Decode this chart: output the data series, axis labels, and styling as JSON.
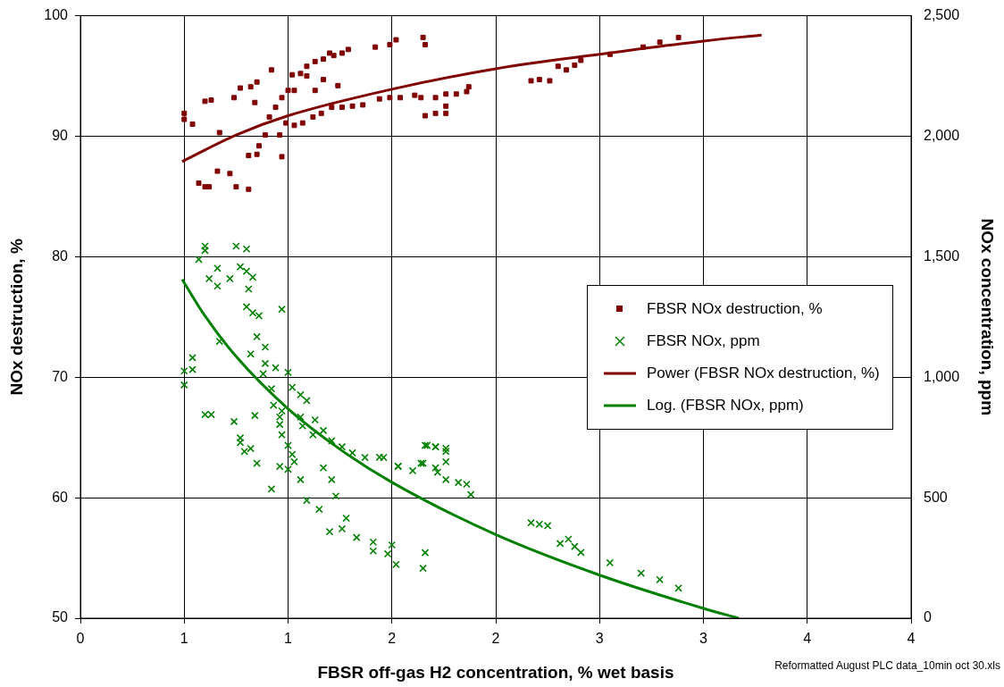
{
  "chart_data": {
    "type": "scatter",
    "xlabel": "FBSR off-gas H2 concentration, % wet basis",
    "ylabel": "NOx destruction, %",
    "y2label": "NOx concentration, ppm",
    "xlim": [
      0,
      4
    ],
    "xticks": [
      0,
      {
        "value": 0.5,
        "label": "1"
      },
      1,
      {
        "value": 1.5,
        "label": "2"
      },
      2,
      {
        "value": 2.5,
        "label": "3"
      },
      3,
      {
        "value": 3.5,
        "label": "4"
      },
      4
    ],
    "ylim": [
      50,
      100
    ],
    "yticks": [
      50,
      60,
      70,
      80,
      90,
      100
    ],
    "y2lim": [
      0,
      2500
    ],
    "y2ticks": [
      0,
      500,
      {
        "value": 1000,
        "label": "1,000"
      },
      {
        "value": 1500,
        "label": "1,500"
      },
      {
        "value": 2000,
        "label": "2,000"
      },
      {
        "value": 2500,
        "label": "2,500"
      }
    ],
    "grid": true,
    "legend": "right",
    "annotations": [
      "Reformatted August PLC data_10min oct 30.xls"
    ],
    "series": [
      {
        "name": "FBSR NOx destruction, %",
        "type": "scatter",
        "marker": "square",
        "color": "#800000",
        "x": [
          0.5,
          0.5,
          0.54,
          0.6,
          0.63,
          0.67,
          0.57,
          0.6,
          0.62,
          0.66,
          0.72,
          0.75,
          0.81,
          0.74,
          0.77,
          0.82,
          0.85,
          0.84,
          0.92,
          0.81,
          0.85,
          0.86,
          0.89,
          0.91,
          0.94,
          0.97,
          1.0,
          0.97,
          0.96,
          0.99,
          1.03,
          1.02,
          1.06,
          1.09,
          1.03,
          1.07,
          1.12,
          1.09,
          1.13,
          1.17,
          1.22,
          1.26,
          1.29,
          1.2,
          1.17,
          1.13,
          1.24,
          1.16,
          1.21,
          1.26,
          1.31,
          1.36,
          1.42,
          1.49,
          1.52,
          1.44,
          1.49,
          1.54,
          1.61,
          1.65,
          1.66,
          1.64,
          1.71,
          1.76,
          1.66,
          1.71,
          1.76,
          1.76,
          1.81,
          1.86,
          1.87,
          2.17,
          2.21,
          2.26,
          2.3,
          2.34,
          2.38,
          2.41,
          2.55,
          2.71,
          2.79,
          2.88
        ],
        "values": [
          91.9,
          91.4,
          91.0,
          92.9,
          93.0,
          90.3,
          86.1,
          85.8,
          85.8,
          87.1,
          86.9,
          85.8,
          85.6,
          93.2,
          94.0,
          94.1,
          94.5,
          92.8,
          95.5,
          88.4,
          88.5,
          89.2,
          90.1,
          91.6,
          92.4,
          93.2,
          93.8,
          88.3,
          90.1,
          91.1,
          93.8,
          95.1,
          95.2,
          95.0,
          90.9,
          91.1,
          91.6,
          95.8,
          96.2,
          96.4,
          96.7,
          96.9,
          97.2,
          96.9,
          94.7,
          93.8,
          94.2,
          91.9,
          92.4,
          92.4,
          92.5,
          92.6,
          97.4,
          97.6,
          98.0,
          93.1,
          93.2,
          93.2,
          93.4,
          98.2,
          97.6,
          93.2,
          93.2,
          93.5,
          91.7,
          91.9,
          91.9,
          92.5,
          93.5,
          93.7,
          94.1,
          94.6,
          94.7,
          94.6,
          95.8,
          95.5,
          95.9,
          96.3,
          96.8,
          97.4,
          97.8,
          98.2
        ]
      },
      {
        "name": "FBSR NOx, ppm",
        "type": "scatter",
        "marker": "cross",
        "color": "#008000",
        "axis": "y2",
        "x": [
          0.5,
          0.5,
          0.54,
          0.54,
          0.57,
          0.6,
          0.6,
          0.62,
          0.66,
          0.66,
          0.72,
          0.75,
          0.77,
          0.8,
          0.8,
          0.83,
          0.81,
          0.8,
          0.83,
          0.86,
          0.97,
          0.85,
          0.89,
          0.67,
          0.82,
          0.89,
          0.88,
          0.94,
          1.0,
          1.02,
          1.06,
          1.09,
          0.92,
          0.93,
          0.97,
          0.6,
          0.63,
          0.74,
          0.84,
          0.77,
          0.77,
          0.82,
          0.79,
          0.85,
          0.96,
          0.97,
          1.0,
          1.02,
          1.06,
          1.07,
          1.13,
          1.12,
          1.17,
          1.21,
          1.26,
          1.31,
          1.37,
          1.46,
          1.53,
          1.66,
          1.71,
          1.76,
          1.64,
          1.71,
          1.76,
          0.96,
          1.0,
          1.17,
          0.92,
          0.96,
          1.03,
          1.06,
          1.09,
          1.15,
          1.2,
          1.26,
          1.28,
          1.33,
          1.21,
          1.23,
          1.41,
          1.41,
          1.48,
          1.5,
          1.52,
          1.65,
          1.66,
          1.44,
          1.53,
          1.6,
          1.67,
          1.71,
          1.76,
          1.65,
          1.72,
          1.76,
          1.82,
          1.86,
          1.88,
          2.17,
          2.21,
          2.25,
          2.31,
          2.35,
          2.38,
          2.41,
          2.55,
          2.7,
          2.79,
          2.88
        ],
        "values": [
          1026,
          968,
          1081,
          1032,
          1489,
          1526,
          1544,
          1409,
          1452,
          1378,
          1409,
          1544,
          1458,
          1532,
          1440,
          1415,
          1366,
          1292,
          1267,
          1255,
          1282,
          1168,
          1125,
          1149,
          1096,
          1057,
          1014,
          1039,
          1020,
          958,
          927,
          903,
          952,
          884,
          860,
          845,
          845,
          816,
          841,
          748,
          729,
          704,
          692,
          643,
          835,
          761,
          717,
          680,
          835,
          798,
          823,
          761,
          779,
          736,
          711,
          686,
          667,
          667,
          630,
          717,
          711,
          692,
          643,
          624,
          649,
          630,
          618,
          624,
          536,
          804,
          649,
          575,
          489,
          452,
          359,
          371,
          415,
          335,
          575,
          507,
          316,
          279,
          267,
          304,
          223,
          207,
          272,
          668,
          631,
          612,
          717,
          711,
          705,
          643,
          606,
          575,
          563,
          556,
          513,
          396,
          390,
          384,
          310,
          328,
          298,
          273,
          230,
          187,
          160,
          125
        ]
      },
      {
        "name": "Power (FBSR NOx destruction, %)",
        "type": "line",
        "marker": "none",
        "line_style": "solid",
        "color": "#800000",
        "x": [
          0.49,
          0.75,
          1,
          1.5,
          2,
          2.5,
          3,
          3.28
        ],
        "values": [
          87.9,
          90.1,
          91.7,
          93.9,
          95.6,
          96.8,
          97.9,
          98.4
        ]
      },
      {
        "name": "Log. (FBSR NOx, ppm)",
        "type": "line",
        "marker": "none",
        "line_style": "solid",
        "color": "#008000",
        "axis": "y2",
        "x": [
          0.49,
          0.6,
          0.75,
          1,
          1.25,
          1.5,
          2,
          2.5,
          3,
          3.17
        ],
        "values": [
          1406,
          1254,
          1086,
          869,
          701,
          564,
          347,
          179,
          41,
          0
        ]
      }
    ]
  }
}
